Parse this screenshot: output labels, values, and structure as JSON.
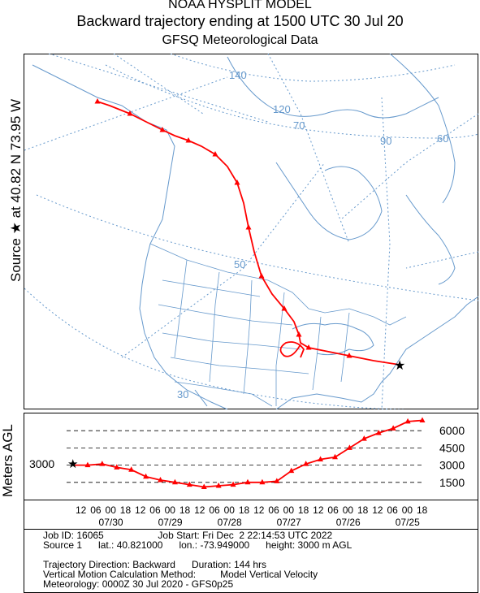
{
  "header": {
    "model": "NOAA HYSPLIT MODEL",
    "subtitle": "Backward trajectory ending at 1500 UTC 30 Jul 20",
    "met_data": "GFSQ Meteorological Data"
  },
  "source_label": {
    "text": "Source",
    "at": "at",
    "lat": "40.82 N",
    "lon": "73.95 W"
  },
  "map": {
    "latitude_labels": [
      "30",
      "50",
      "70"
    ],
    "longitude_labels": [
      "140",
      "120",
      "90",
      "60"
    ],
    "colors": {
      "trajectory": "#ff0000",
      "coast": "#6699cc",
      "grid": "#6699cc",
      "frame": "#000000"
    }
  },
  "vertical": {
    "ylabel": "Meters AGL",
    "source_height_label": "3000",
    "y_ticks": [
      "6000",
      "4500",
      "3000",
      "1500"
    ],
    "time_ticks": [
      "12",
      "06",
      "00",
      "18",
      "12",
      "06",
      "00",
      "18",
      "12",
      "06",
      "00",
      "18",
      "12",
      "06",
      "00",
      "18",
      "12",
      "06",
      "00",
      "18",
      "12",
      "06",
      "00",
      "18"
    ],
    "date_labels": [
      "07/30",
      "07/29",
      "07/28",
      "07/27",
      "07/26",
      "07/25"
    ]
  },
  "chart_data": {
    "type": "line",
    "title": "",
    "xlabel": "",
    "ylabel": "Meters AGL",
    "x_hours_back": [
      0,
      6,
      12,
      18,
      24,
      30,
      36,
      42,
      48,
      54,
      60,
      66,
      72,
      78,
      84,
      90,
      96,
      102,
      108,
      114,
      120,
      126,
      132,
      138,
      144
    ],
    "series": [
      {
        "values": [
          3000,
          3000,
          3100,
          2800,
          2600,
          2000,
          1700,
          1500,
          1300,
          1100,
          1200,
          1300,
          1500,
          1500,
          1600,
          2500,
          3100,
          3500,
          3700,
          4500,
          5300,
          5800,
          6200,
          6800,
          6900
        ]
      }
    ],
    "ylim": [
      0,
      7500
    ]
  },
  "info": {
    "line1": "Job ID: 16065                    Job Start: Fri Dec  2 22:14:53 UTC 2022",
    "line2": "Source 1      lat.: 40.821000      lon.: -73.949000      height: 3000 m AGL",
    "line3": "Trajectory Direction: Backward      Duration: 144 hrs",
    "line4": "Vertical Motion Calculation Method:         Model Vertical Velocity",
    "line5": "Meteorology: 0000Z 30 Jul 2020 - GFS0p25"
  }
}
